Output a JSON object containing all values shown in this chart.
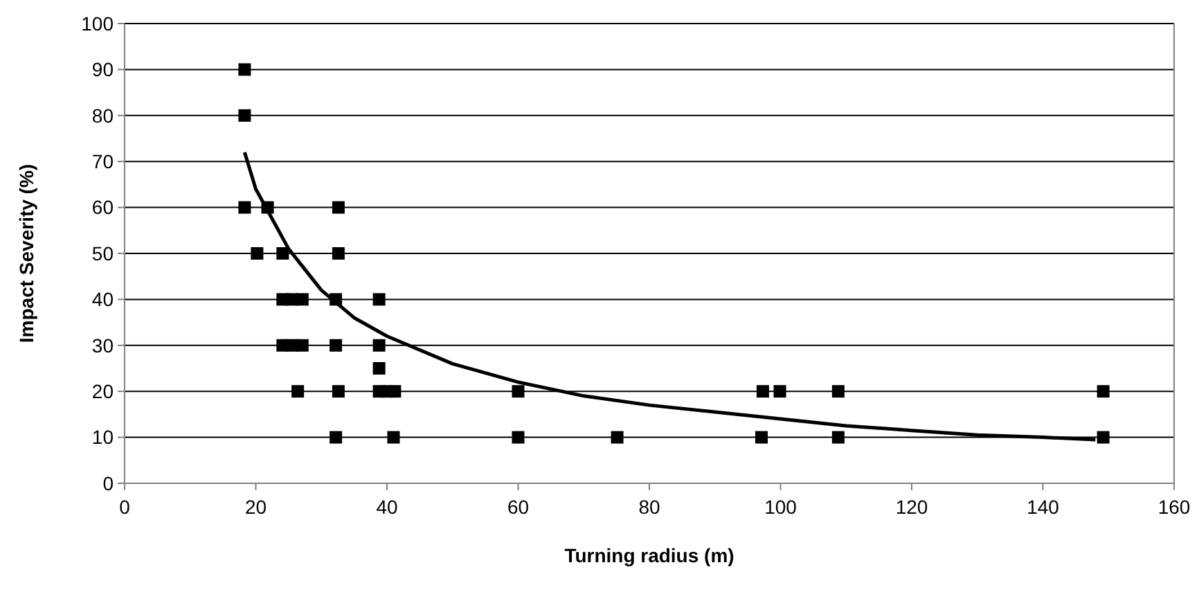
{
  "chart_data": {
    "type": "scatter",
    "xlabel": "Turning radius (m)",
    "ylabel": "Impact Severity (%)",
    "xlim": [
      0,
      160
    ],
    "ylim": [
      0,
      100
    ],
    "xticks": [
      0,
      20,
      40,
      60,
      80,
      100,
      120,
      140,
      160
    ],
    "yticks": [
      0,
      10,
      20,
      30,
      40,
      50,
      60,
      70,
      80,
      90,
      100
    ],
    "grid": "y",
    "series": [
      {
        "color": "#000000",
        "marker": "square",
        "x": [
          18.3,
          18.3,
          18.3,
          21.8,
          32.6,
          20.2,
          24.1,
          32.6,
          24.1,
          25.5,
          27.1,
          32.2,
          38.8,
          24.1,
          25.5,
          27.1,
          32.2,
          38.8,
          38.8,
          26.4,
          32.6,
          38.8,
          40,
          41.2,
          32.2,
          41,
          60,
          97.3,
          99.9,
          108.8,
          149.2,
          60,
          75.1,
          97.1,
          108.8,
          149.2
        ],
        "values": [
          90,
          80,
          60,
          60,
          60,
          50,
          50,
          50,
          40,
          40,
          40,
          40,
          40,
          30,
          30,
          30,
          30,
          30,
          25,
          20,
          20,
          20,
          20,
          20,
          10,
          10,
          20,
          20,
          20,
          20,
          20,
          10,
          10,
          10,
          10,
          10
        ]
      },
      {
        "type": "line",
        "color": "#000000",
        "marker": "none",
        "line_style": "solid",
        "x": [
          18.3,
          20,
          25,
          30,
          35,
          40,
          50,
          60,
          70,
          80,
          90,
          100,
          110,
          120,
          130,
          140,
          148
        ],
        "values": [
          72,
          64,
          51,
          42,
          36,
          32,
          26,
          22,
          19,
          17,
          15.5,
          14,
          12.5,
          11.5,
          10.5,
          10,
          9.5
        ]
      }
    ]
  }
}
